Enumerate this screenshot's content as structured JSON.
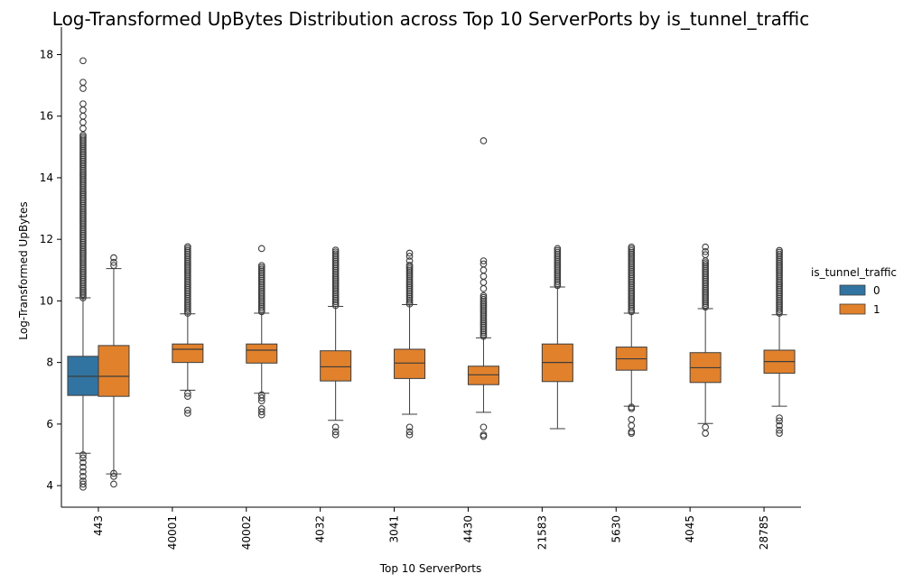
{
  "chart_data": {
    "type": "box",
    "title": "Log-Transformed UpBytes Distribution across Top 10 ServerPorts by is_tunnel_traffic",
    "xlabel": "Top 10 ServerPorts",
    "ylabel": "Log-Transformed UpBytes",
    "ylim": [
      3.3,
      18.6
    ],
    "yticks": [
      4,
      6,
      8,
      10,
      12,
      14,
      16,
      18
    ],
    "categories": [
      "443",
      "40001",
      "40002",
      "4032",
      "3041",
      "4430",
      "21583",
      "5630",
      "4045",
      "28785"
    ],
    "legend": {
      "title": "is_tunnel_traffic",
      "placement": "right",
      "entries": [
        {
          "label": "0",
          "color": "#3274a1"
        },
        {
          "label": "1",
          "color": "#e1812c"
        }
      ]
    },
    "boxes": [
      {
        "category": "443",
        "group": "0",
        "whisker_low": 5.05,
        "q1": 6.93,
        "median": 7.55,
        "q3": 8.2,
        "whisker_high": 10.1,
        "outliers_low": [
          3.95,
          4.05,
          4.15,
          4.3,
          4.45,
          4.6,
          4.75,
          4.9,
          5.0
        ],
        "outliers_high_range": [
          10.1,
          15.4
        ],
        "outliers_high": [
          15.6,
          15.8,
          16.0,
          16.2,
          16.4,
          16.9,
          17.1,
          17.8
        ]
      },
      {
        "category": "443",
        "group": "1",
        "whisker_low": 4.38,
        "q1": 6.9,
        "median": 7.55,
        "q3": 8.55,
        "whisker_high": 11.05,
        "outliers_low": [
          4.05,
          4.3,
          4.4
        ],
        "outliers_high": [
          11.15,
          11.25,
          11.4
        ]
      },
      {
        "category": "40001",
        "group": "1",
        "whisker_low": 7.1,
        "q1": 8.0,
        "median": 8.43,
        "q3": 8.6,
        "whisker_high": 9.58,
        "outliers_low": [
          6.35,
          6.45,
          6.9,
          7.0
        ],
        "outliers_high_range": [
          9.6,
          11.8
        ]
      },
      {
        "category": "40002",
        "group": "1",
        "whisker_low": 7.0,
        "q1": 7.98,
        "median": 8.4,
        "q3": 8.6,
        "whisker_high": 9.6,
        "outliers_low": [
          6.3,
          6.4,
          6.5,
          6.75,
          6.85,
          6.95
        ],
        "outliers_high_range": [
          9.65,
          11.2
        ],
        "outliers_high": [
          11.7
        ]
      },
      {
        "category": "4032",
        "group": "1",
        "whisker_low": 6.12,
        "q1": 7.4,
        "median": 7.86,
        "q3": 8.38,
        "whisker_high": 9.82,
        "outliers_low": [
          5.65,
          5.75,
          5.9
        ],
        "outliers_high_range": [
          9.85,
          11.7
        ]
      },
      {
        "category": "3041",
        "group": "1",
        "whisker_low": 6.32,
        "q1": 7.48,
        "median": 7.98,
        "q3": 8.43,
        "whisker_high": 9.88,
        "outliers_low": [
          5.65,
          5.75,
          5.9
        ],
        "outliers_high_range": [
          9.9,
          11.2
        ],
        "outliers_high": [
          11.3,
          11.45,
          11.55
        ]
      },
      {
        "category": "4430",
        "group": "1",
        "whisker_low": 6.38,
        "q1": 7.28,
        "median": 7.6,
        "q3": 7.88,
        "whisker_high": 8.8,
        "outliers_low": [
          5.6,
          5.65,
          5.9
        ],
        "outliers_high_range": [
          8.85,
          10.2
        ],
        "outliers_high": [
          10.4,
          10.6,
          10.8,
          11.0,
          11.2,
          11.3,
          15.2
        ]
      },
      {
        "category": "21583",
        "group": "1",
        "whisker_low": 5.85,
        "q1": 7.38,
        "median": 8.0,
        "q3": 8.6,
        "whisker_high": 10.45,
        "outliers_low": [],
        "outliers_high_range": [
          10.5,
          11.7
        ]
      },
      {
        "category": "5630",
        "group": "1",
        "whisker_low": 6.58,
        "q1": 7.75,
        "median": 8.12,
        "q3": 8.5,
        "whisker_high": 9.6,
        "outliers_low": [
          5.7,
          5.75,
          5.95,
          6.15,
          6.5,
          6.55
        ],
        "outliers_high_range": [
          9.65,
          11.8
        ]
      },
      {
        "category": "4045",
        "group": "1",
        "whisker_low": 6.02,
        "q1": 7.35,
        "median": 7.83,
        "q3": 8.32,
        "whisker_high": 9.75,
        "outliers_low": [
          5.7,
          5.9
        ],
        "outliers_high_range": [
          9.8,
          11.3
        ],
        "outliers_high": [
          11.5,
          11.6,
          11.75
        ]
      },
      {
        "category": "28785",
        "group": "1",
        "whisker_low": 6.58,
        "q1": 7.65,
        "median": 8.03,
        "q3": 8.4,
        "whisker_high": 9.55,
        "outliers_low": [
          5.7,
          5.8,
          5.95,
          6.1,
          6.2
        ],
        "outliers_high_range": [
          9.6,
          11.65
        ]
      }
    ]
  }
}
